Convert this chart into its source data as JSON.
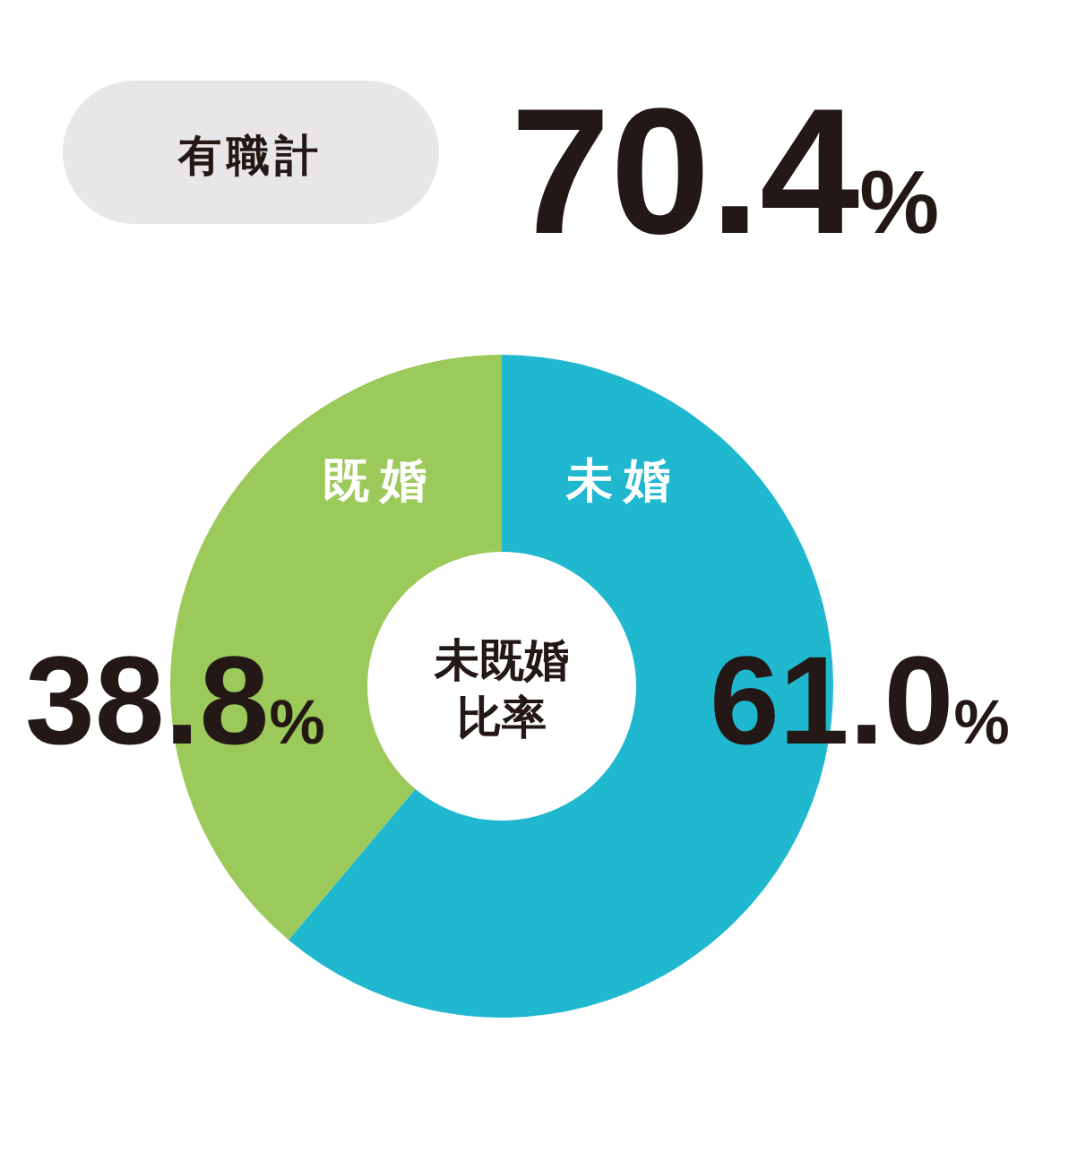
{
  "chart_data": {
    "type": "donut",
    "title": "未既婚比率",
    "categories": [
      "未婚",
      "既婚"
    ],
    "values": [
      61.0,
      38.8
    ],
    "colors": [
      "#1fb8cf",
      "#9bc95a"
    ],
    "value_labels": [
      "61.0%",
      "38.8%"
    ],
    "annotations": [
      "有職計",
      "70.4%"
    ],
    "legend": false
  }
}
